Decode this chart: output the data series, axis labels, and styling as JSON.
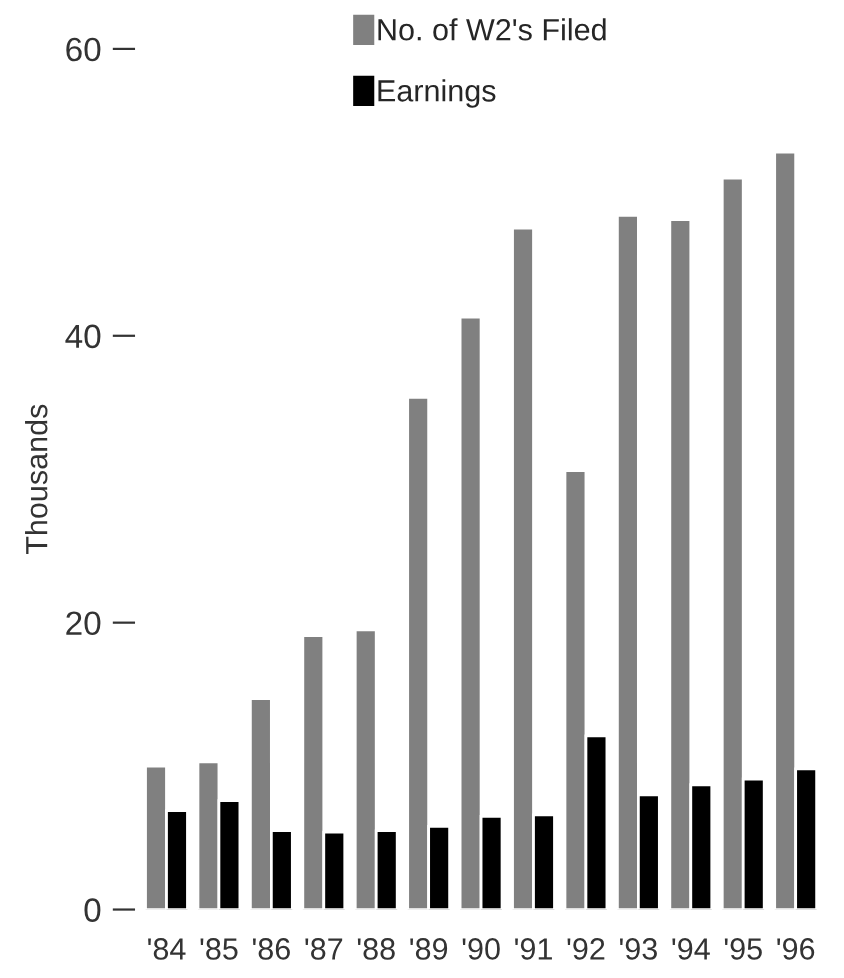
{
  "chart_data": {
    "type": "bar",
    "ylabel": "Thousands",
    "categories": [
      "'84",
      "'85",
      "'86",
      "'87",
      "'88",
      "'89",
      "'90",
      "'91",
      "'92",
      "'93",
      "'94",
      "'95",
      "'96"
    ],
    "series": [
      {
        "name": "No. of W2's Filed",
        "color": "#808080",
        "values": [
          10.0,
          10.3,
          14.7,
          19.1,
          19.5,
          35.7,
          41.3,
          47.5,
          30.6,
          48.4,
          48.1,
          51.0,
          52.8
        ]
      },
      {
        "name": "Earnings",
        "color": "#000000",
        "values": [
          6.9,
          7.6,
          5.5,
          5.4,
          5.5,
          5.8,
          6.5,
          6.6,
          12.1,
          8.0,
          8.7,
          9.1,
          9.8
        ]
      }
    ],
    "ylim": [
      0,
      60
    ],
    "yticks": [
      0,
      20,
      40,
      60
    ],
    "grid": false,
    "legend": "top"
  }
}
